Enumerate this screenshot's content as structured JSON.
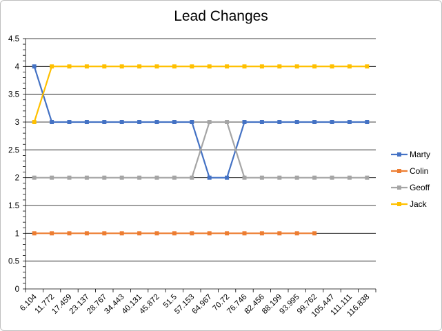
{
  "chart_data": {
    "type": "line",
    "title": "Lead Changes",
    "xlabel": "",
    "ylabel": "",
    "categories": [
      "6.104",
      "11.772",
      "17.459",
      "23.137",
      "28.767",
      "34.443",
      "40.131",
      "45.872",
      "51.5",
      "57.153",
      "64.967",
      "70.72",
      "76.746",
      "82.456",
      "88.199",
      "93.995",
      "99.762",
      "105.447",
      "111.111",
      "116.838"
    ],
    "ylim": [
      0,
      4.5
    ],
    "yticks": [
      "0",
      "0.5",
      "1",
      "1.5",
      "2",
      "2.5",
      "3",
      "3.5",
      "4",
      "4.5"
    ],
    "grid": true,
    "legend_position": "right",
    "series": [
      {
        "name": "Marty",
        "color": "#4472c4",
        "values": [
          4,
          3,
          3,
          3,
          3,
          3,
          3,
          3,
          3,
          3,
          2,
          2,
          3,
          3,
          3,
          3,
          3,
          3,
          3,
          3
        ]
      },
      {
        "name": "Colin",
        "color": "#ed7d31",
        "values": [
          1,
          1,
          1,
          1,
          1,
          1,
          1,
          1,
          1,
          1,
          1,
          1,
          1,
          1,
          1,
          1,
          1,
          null,
          null,
          null
        ]
      },
      {
        "name": "Geoff",
        "color": "#a5a5a5",
        "values": [
          2,
          2,
          2,
          2,
          2,
          2,
          2,
          2,
          2,
          2,
          3,
          3,
          2,
          2,
          2,
          2,
          2,
          2,
          2,
          2
        ]
      },
      {
        "name": "Jack",
        "color": "#ffc000",
        "values": [
          3,
          4,
          4,
          4,
          4,
          4,
          4,
          4,
          4,
          4,
          4,
          4,
          4,
          4,
          4,
          4,
          4,
          4,
          4,
          4
        ]
      }
    ]
  }
}
